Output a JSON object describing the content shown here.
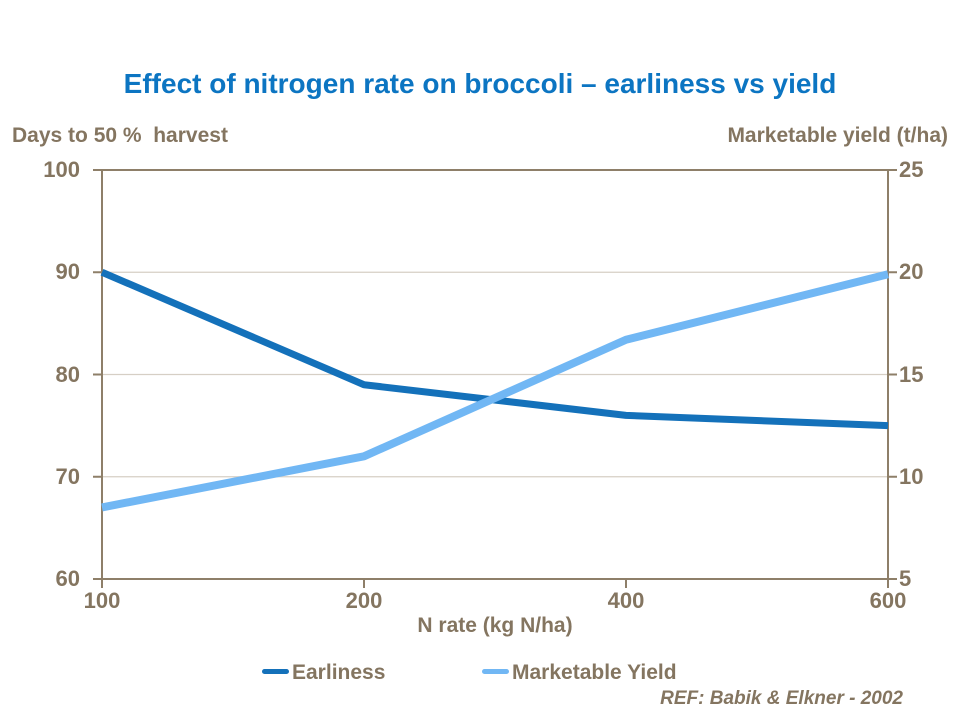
{
  "colors": {
    "title_blue": "#0C75C2",
    "text_brown": "#847560",
    "axis_line": "#8E7F69",
    "gridline": "#D6CFC5",
    "earliness_blue": "#1471BA",
    "yield_light_blue": "#71B7F4",
    "background": "#FFFFFF"
  },
  "chart_data": {
    "type": "line",
    "title": "Effect of nitrogen rate on broccoli – earliness vs yield",
    "xlabel": "N rate (kg N/ha)",
    "x": [
      100,
      200,
      400,
      600
    ],
    "x_tick_labels": [
      "100",
      "200",
      "400",
      "600"
    ],
    "left_axis": {
      "label": "Days to 50 %  harvest",
      "ticks": [
        100,
        90,
        80,
        70,
        60
      ],
      "range": [
        60,
        100
      ]
    },
    "right_axis": {
      "label": "Marketable yield (t/ha)",
      "ticks": [
        25,
        20,
        15,
        10,
        5
      ],
      "range": [
        5,
        25
      ]
    },
    "series": [
      {
        "name": "Earliness",
        "axis": "left",
        "color": "#1471BA",
        "values": [
          90,
          79,
          76,
          75
        ]
      },
      {
        "name": "Marketable Yield",
        "axis": "right",
        "color": "#71B7F4",
        "values": [
          8.5,
          11,
          16.7,
          19.9
        ]
      }
    ],
    "grid": true,
    "legend_position": "bottom",
    "annotation": "REF: Babik & Elkner - 2002"
  }
}
